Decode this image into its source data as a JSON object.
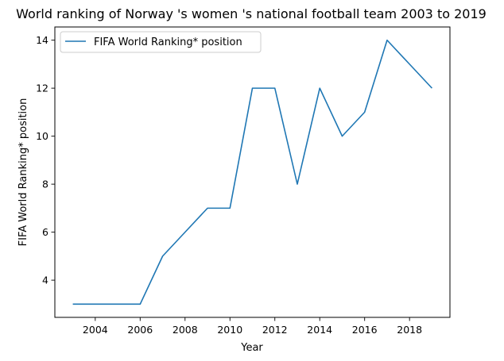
{
  "chart_data": {
    "type": "line",
    "title": "World ranking of Norway 's women 's national football team 2003 to 2019",
    "xlabel": "Year",
    "ylabel": "FIFA World Ranking* position",
    "x": [
      2003,
      2004,
      2005,
      2006,
      2007,
      2008,
      2009,
      2010,
      2011,
      2012,
      2013,
      2014,
      2015,
      2016,
      2017,
      2018,
      2019
    ],
    "series": [
      {
        "name": "FIFA World Ranking* position",
        "color": "#1f77b4",
        "values": [
          3,
          3,
          3,
          3,
          5,
          6,
          7,
          7,
          12,
          12,
          8,
          12,
          10,
          11,
          14,
          13,
          12
        ]
      }
    ],
    "xlim": [
      2002.2,
      2019.8
    ],
    "ylim": [
      2.45,
      14.55
    ],
    "xticks": [
      "2004",
      "2006",
      "2008",
      "2010",
      "2012",
      "2014",
      "2016",
      "2018"
    ],
    "yticks": [
      "4",
      "6",
      "8",
      "10",
      "12",
      "14"
    ],
    "grid": false,
    "legend_position": "upper-left"
  }
}
